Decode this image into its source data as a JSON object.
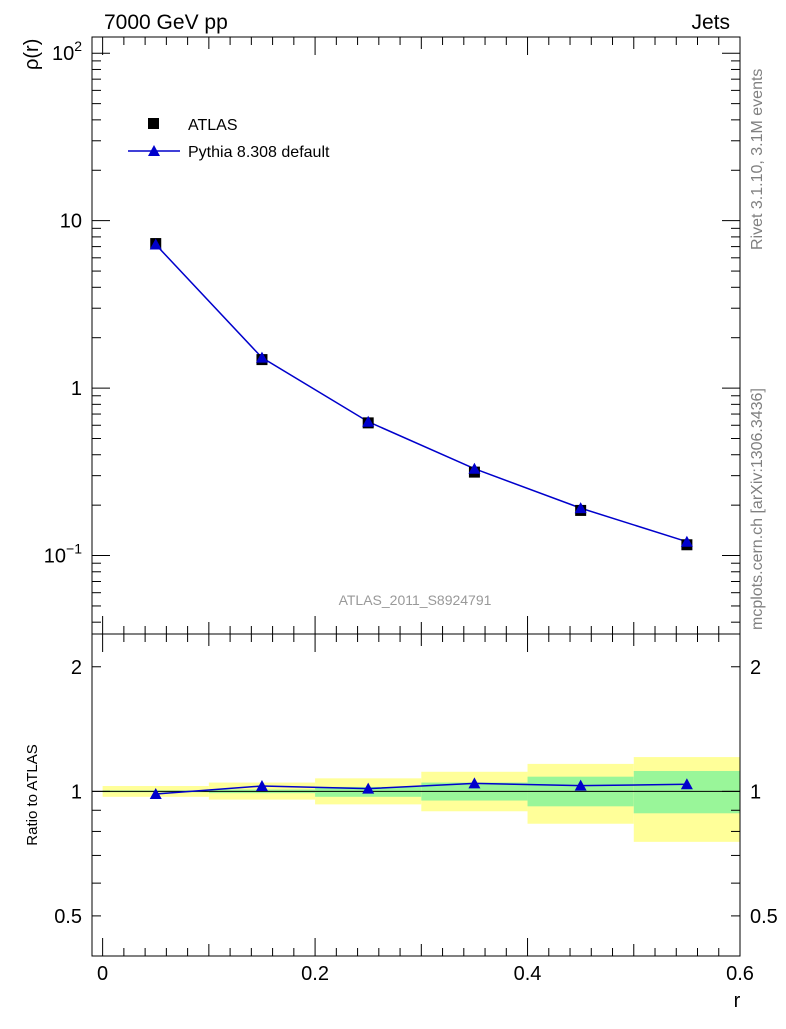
{
  "header": {
    "left": "7000 GeV pp",
    "right": "Jets"
  },
  "side_label_top": "Rivet 3.1.10,  3.1M events",
  "side_label_bottom": "mcplots.cern.ch [arXiv:1306.3436]",
  "analysis_label": "ATLAS_2011_S8924791",
  "colors": {
    "mc_line": "#0000cc",
    "band_inner": "#99f699",
    "band_outer": "#ffff99",
    "data_marker": "#000000"
  },
  "chart_data": [
    {
      "type": "line",
      "scale": "log",
      "ylabel": "ρ(r)",
      "xlim": [
        -0.01,
        0.6
      ],
      "ylim": [
        0.034,
        125
      ],
      "y_ticks": [
        {
          "value": 0.1,
          "base": "10",
          "exp": "−1"
        },
        {
          "value": 1,
          "base": "1",
          "exp": ""
        },
        {
          "value": 10,
          "base": "10",
          "exp": ""
        },
        {
          "value": 100,
          "base": "10",
          "exp": "2"
        }
      ],
      "legend": {
        "placement": "top-left",
        "entries": [
          "ATLAS",
          "Pythia 8.308 default"
        ]
      },
      "series": [
        {
          "name": "ATLAS",
          "marker": "square",
          "x": [
            0.05,
            0.15,
            0.25,
            0.35,
            0.45,
            0.55
          ],
          "y": [
            7.3,
            1.48,
            0.62,
            0.315,
            0.186,
            0.116
          ]
        },
        {
          "name": "Pythia 8.308 default",
          "marker": "triangle",
          "x": [
            0.05,
            0.15,
            0.25,
            0.35,
            0.45,
            0.55
          ],
          "y": [
            7.2,
            1.52,
            0.63,
            0.33,
            0.192,
            0.121
          ]
        }
      ]
    },
    {
      "type": "line",
      "scale": "log",
      "xlabel": "r",
      "ylabel": "Ratio to ATLAS",
      "xlim": [
        -0.01,
        0.6
      ],
      "ylim": [
        0.4,
        2.4
      ],
      "x_ticks": [
        "0",
        "0.2",
        "0.4",
        "0.6"
      ],
      "x_tick_values": [
        0,
        0.2,
        0.4,
        0.6
      ],
      "y_ticks": [
        "0.5",
        "1",
        "2"
      ],
      "y_tick_values": [
        0.5,
        1,
        2
      ],
      "bands": {
        "bin_edges": [
          0,
          0.1,
          0.2,
          0.3,
          0.4,
          0.5,
          0.6
        ],
        "inner_lo": [
          0.995,
          0.99,
          0.97,
          0.95,
          0.92,
          0.885
        ],
        "inner_hi": [
          1.005,
          1.01,
          1.025,
          1.05,
          1.085,
          1.12
        ],
        "outer_lo": [
          0.97,
          0.955,
          0.93,
          0.895,
          0.835,
          0.755
        ],
        "outer_hi": [
          1.03,
          1.05,
          1.075,
          1.115,
          1.165,
          1.21
        ]
      },
      "series": [
        {
          "name": "Pythia 8.308 default",
          "x": [
            0.05,
            0.15,
            0.25,
            0.35,
            0.45,
            0.55
          ],
          "y": [
            0.985,
            1.03,
            1.015,
            1.045,
            1.032,
            1.04
          ]
        }
      ]
    }
  ]
}
